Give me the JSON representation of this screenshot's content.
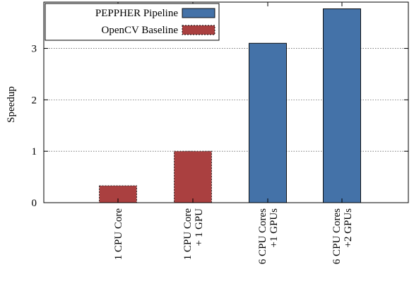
{
  "chart_data": {
    "type": "bar",
    "title": "",
    "xlabel": "",
    "ylabel": "Speedup",
    "ylim": [
      0,
      3.9
    ],
    "yticks": [
      0,
      1,
      2,
      3
    ],
    "grid": "horizontal dotted",
    "legend_position": "top-left",
    "categories": [
      [
        "1 CPU Core"
      ],
      [
        "1 CPU Core",
        "+ 1 GPU"
      ],
      [
        "6 CPU Cores",
        "+1 GPUs"
      ],
      [
        "6 CPU Cores",
        "+2 GPUs"
      ]
    ],
    "series": [
      {
        "name": "PEPPHER Pipeline",
        "color": "#4472a8",
        "values": [
          null,
          null,
          3.1,
          3.77
        ]
      },
      {
        "name": "OpenCV Baseline",
        "color": "#aa4040",
        "values": [
          0.33,
          1.0,
          null,
          null
        ]
      }
    ]
  }
}
